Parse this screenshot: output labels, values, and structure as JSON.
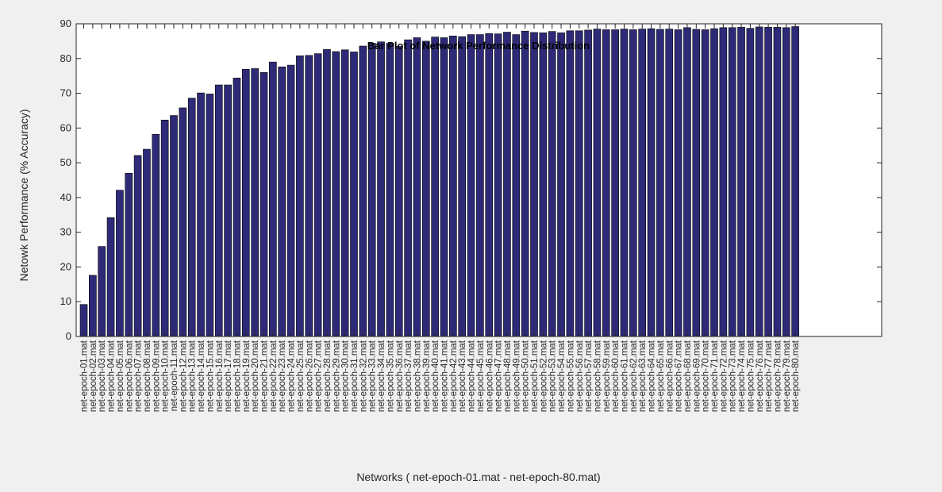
{
  "chart_data": {
    "type": "bar",
    "title": "Bar Plot of Network Performance Distribution",
    "xlabel": "Networks ( net-epoch-01.mat - net-epoch-80.mat)",
    "ylabel": "Netowk Performance (% Accuracy)",
    "ylim": [
      0,
      90
    ],
    "yticks": [
      0,
      10,
      20,
      30,
      40,
      50,
      60,
      70,
      80,
      90
    ],
    "grid": false,
    "bar_color": "#2e2a78",
    "categories": [
      "net-epoch-01.mat",
      "net-epoch-02.mat",
      "net-epoch-03.mat",
      "net-epoch-04.mat",
      "net-epoch-05.mat",
      "net-epoch-06.mat",
      "net-epoch-07.mat",
      "net-epoch-08.mat",
      "net-epoch-09.mat",
      "net-epoch-10.mat",
      "net-epoch-11.mat",
      "net-epoch-12.mat",
      "net-epoch-13.mat",
      "net-epoch-14.mat",
      "net-epoch-15.mat",
      "net-epoch-16.mat",
      "net-epoch-17.mat",
      "net-epoch-18.mat",
      "net-epoch-19.mat",
      "net-epoch-20.mat",
      "net-epoch-21.mat",
      "net-epoch-22.mat",
      "net-epoch-23.mat",
      "net-epoch-24.mat",
      "net-epoch-25.mat",
      "net-epoch-26.mat",
      "net-epoch-27.mat",
      "net-epoch-28.mat",
      "net-epoch-29.mat",
      "net-epoch-30.mat",
      "net-epoch-31.mat",
      "net-epoch-32.mat",
      "net-epoch-33.mat",
      "net-epoch-34.mat",
      "net-epoch-35.mat",
      "net-epoch-36.mat",
      "net-epoch-37.mat",
      "net-epoch-38.mat",
      "net-epoch-39.mat",
      "net-epoch-40.mat",
      "net-epoch-41.mat",
      "net-epoch-42.mat",
      "net-epoch-43.mat",
      "net-epoch-44.mat",
      "net-epoch-45.mat",
      "net-epoch-46.mat",
      "net-epoch-47.mat",
      "net-epoch-48.mat",
      "net-epoch-49.mat",
      "net-epoch-50.mat",
      "net-epoch-51.mat",
      "net-epoch-52.mat",
      "net-epoch-53.mat",
      "net-epoch-54.mat",
      "net-epoch-55.mat",
      "net-epoch-56.mat",
      "net-epoch-57.mat",
      "net-epoch-58.mat",
      "net-epoch-59.mat",
      "net-epoch-60.mat",
      "net-epoch-61.mat",
      "net-epoch-62.mat",
      "net-epoch-63.mat",
      "net-epoch-64.mat",
      "net-epoch-65.mat",
      "net-epoch-66.mat",
      "net-epoch-67.mat",
      "net-epoch-68.mat",
      "net-epoch-69.mat",
      "net-epoch-70.mat",
      "net-epoch-71.mat",
      "net-epoch-72.mat",
      "net-epoch-73.mat",
      "net-epoch-74.mat",
      "net-epoch-75.mat",
      "net-epoch-76.mat",
      "net-epoch-77.mat",
      "net-epoch-78.mat",
      "net-epoch-79.mat",
      "net-epoch-80.mat"
    ],
    "values": [
      9.2,
      17.6,
      25.9,
      34.2,
      42.1,
      47.0,
      52.1,
      53.9,
      58.2,
      62.3,
      63.6,
      65.8,
      68.6,
      70.1,
      69.8,
      72.4,
      72.4,
      74.4,
      76.9,
      77.1,
      76.0,
      79.0,
      77.6,
      78.1,
      80.8,
      80.9,
      81.4,
      82.6,
      82.0,
      82.5,
      81.9,
      83.6,
      84.4,
      84.8,
      84.4,
      83.5,
      85.4,
      86.0,
      85.0,
      86.2,
      86.0,
      86.5,
      86.3,
      86.9,
      86.9,
      87.2,
      87.1,
      87.6,
      86.9,
      87.9,
      87.5,
      87.4,
      87.8,
      87.4,
      88.0,
      88.0,
      88.2,
      88.5,
      88.3,
      88.3,
      88.5,
      88.3,
      88.5,
      88.6,
      88.4,
      88.5,
      88.3,
      88.9,
      88.4,
      88.3,
      88.6,
      88.9,
      88.9,
      89.0,
      88.7,
      89.1,
      89.0,
      89.0,
      88.9,
      89.2
    ]
  }
}
